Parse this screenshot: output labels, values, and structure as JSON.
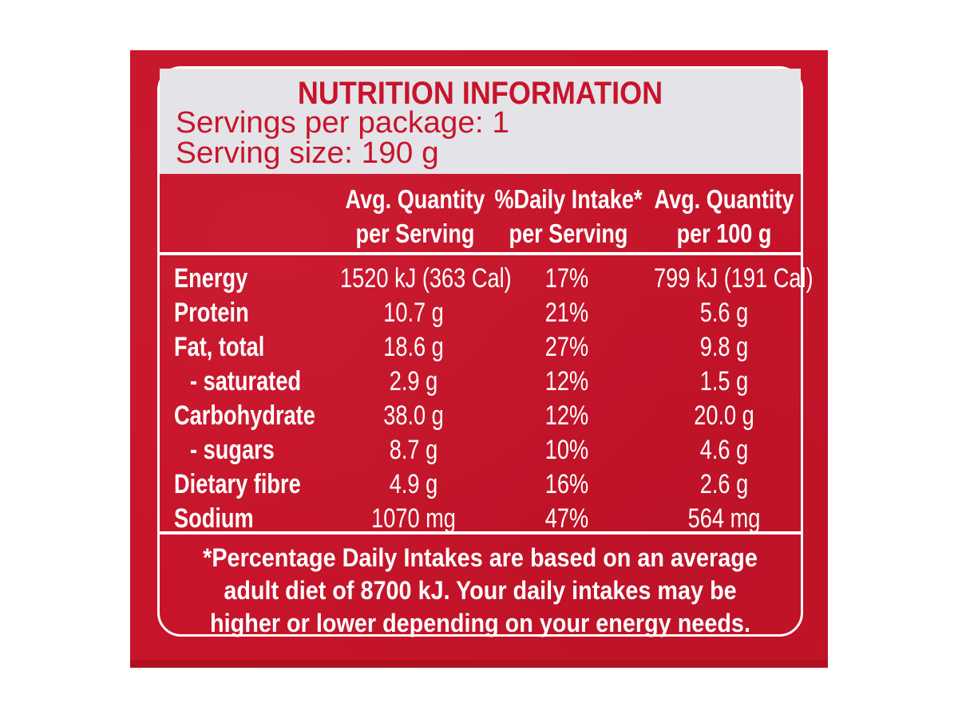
{
  "panel": {
    "title": "NUTRITION INFORMATION",
    "servings_per_package": "Servings per package: 1",
    "serving_size": "Serving size: 190 g"
  },
  "columns": [
    {
      "line1": "Avg. Quantity",
      "line2": "per Serving"
    },
    {
      "line1": "%Daily Intake*",
      "line2": "per Serving"
    },
    {
      "line1": "Avg. Quantity",
      "line2": "per 100 g"
    }
  ],
  "rows": [
    {
      "label": "Energy",
      "per_serving": "1520 kJ (363 Cal)",
      "daily_intake": "17%",
      "per_100g": "799 kJ (191 Cal)"
    },
    {
      "label": "Protein",
      "per_serving": "10.7 g",
      "daily_intake": "21%",
      "per_100g": "5.6 g"
    },
    {
      "label": "Fat, total",
      "per_serving": "18.6 g",
      "daily_intake": "27%",
      "per_100g": "9.8 g"
    },
    {
      "label": "- saturated",
      "per_serving": "2.9 g",
      "daily_intake": "12%",
      "per_100g": "1.5 g"
    },
    {
      "label": "Carbohydrate",
      "per_serving": "38.0 g",
      "daily_intake": "12%",
      "per_100g": "20.0 g"
    },
    {
      "label": "- sugars",
      "per_serving": "8.7 g",
      "daily_intake": "10%",
      "per_100g": "4.6 g"
    },
    {
      "label": "Dietary fibre",
      "per_serving": "4.9 g",
      "daily_intake": "16%",
      "per_100g": "2.6 g"
    },
    {
      "label": "Sodium",
      "per_serving": "1070 mg",
      "daily_intake": "47%",
      "per_100g": "564 mg"
    }
  ],
  "footnote": [
    "*Percentage Daily Intakes are based on an average",
    "adult diet of 8700 kJ. Your daily intakes may be",
    "higher or lower depending on your energy needs."
  ],
  "colors": {
    "panel_red": "#c8142a",
    "header_bg": "#e4e4e8",
    "text_white": "#ffffff"
  }
}
